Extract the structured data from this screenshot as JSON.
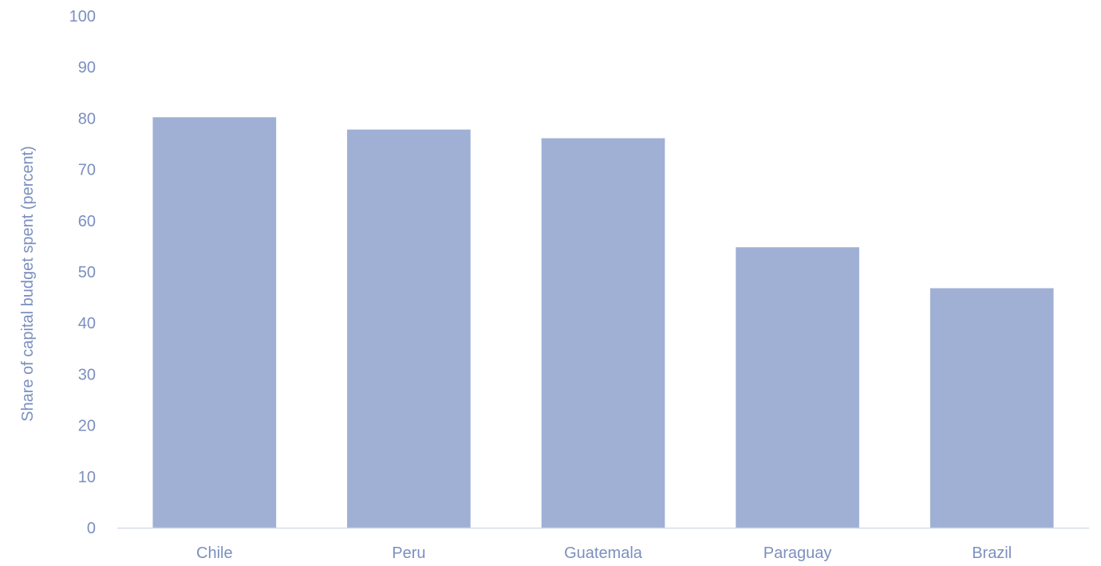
{
  "chart_data": {
    "type": "bar",
    "title": "",
    "xlabel": "",
    "ylabel": "Share of capital budget spent (percent)",
    "categories": [
      "Chile",
      "Peru",
      "Guatemala",
      "Paraguay",
      "Brazil"
    ],
    "values": [
      80.2,
      77.8,
      76.1,
      54.8,
      46.8
    ],
    "ylim": [
      0,
      100
    ],
    "yticks": [
      0,
      10,
      20,
      30,
      40,
      50,
      60,
      70,
      80,
      90,
      100
    ],
    "grid": false,
    "legend": "none",
    "colors": {
      "bar": "#9fb0d4",
      "text": "#7b8fbf",
      "axis": "#d5dbe8"
    }
  }
}
